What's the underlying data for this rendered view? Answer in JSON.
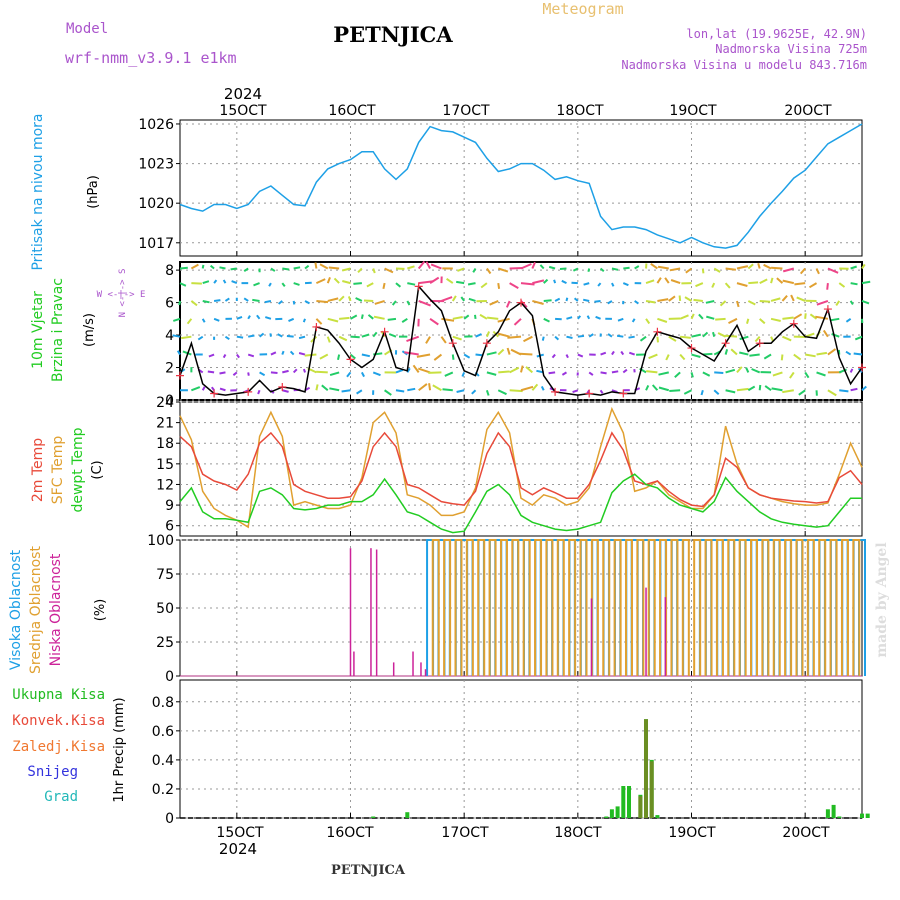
{
  "header": {
    "model_label": "Model",
    "model_value": "wrf-nmm_v3.9.1  e1km",
    "title": "PETNJICA",
    "meteogram_label": "Meteogram",
    "location": "lon,lat (19.9625E, 42.9N)",
    "elevation": "Nadmorska Visina 725m",
    "model_elevation": "Nadmorska Visina u modelu 843.716m",
    "footer_title": "PETNJICA",
    "credit": "made by Angel"
  },
  "colors": {
    "pressure": "#1ea0e6",
    "wind_label": "#22cc22",
    "t2m": "#e84a3a",
    "sfc": "#e0a030",
    "dew": "#22cc22",
    "high_cloud": "#1ea0e6",
    "mid_cloud": "#e0a030",
    "low_cloud": "#cc2299",
    "precip": "#22bb22",
    "precip_dark": "#6b8e23",
    "model": "#aa55cc",
    "header_gold": "#e8c070",
    "grid": "#999999"
  },
  "time_axis": {
    "year": "2024",
    "ticks": [
      "15OCT",
      "16OCT",
      "17OCT",
      "18OCT",
      "19OCT",
      "20OCT"
    ]
  },
  "panels": {
    "pressure": {
      "label": "Pritisak na nivou mora",
      "unit": "(hPa)"
    },
    "wind": {
      "label1": "10m Vjetar",
      "label2": "Brzina i Pravac",
      "unit": "(m/s)",
      "compass_ns": "N <-|-> S",
      "compass_we": "W  <-|->  E"
    },
    "temp": {
      "label_t2m": "2m Temp",
      "label_sfc": "SFC Temp",
      "label_dew": "dewpt Temp",
      "unit": "(C)"
    },
    "cloud": {
      "label_high": "Visoka Oblacnost",
      "label_mid": "Srednja Oblacnost",
      "label_low": "Niska Oblacnost",
      "unit": "(%)"
    },
    "precip": {
      "unit": "1hr Precip (mm)",
      "legend": [
        "Ukupna Kisa",
        "Konvek.Kisa",
        "Zaledj.Kisa",
        "Snijeg",
        "Grad"
      ]
    }
  },
  "chart_data": [
    {
      "type": "line",
      "panel": "pressure",
      "ylim": [
        1016,
        1026.3
      ],
      "yticks": [
        1017,
        1020,
        1023,
        1026
      ],
      "x_days": [
        14.5,
        14.6,
        14.7,
        14.8,
        14.9,
        15.0,
        15.1,
        15.2,
        15.3,
        15.4,
        15.5,
        15.6,
        15.7,
        15.8,
        15.9,
        16.0,
        16.1,
        16.2,
        16.3,
        16.4,
        16.5,
        16.6,
        16.7,
        16.8,
        16.9,
        17.0,
        17.1,
        17.2,
        17.3,
        17.4,
        17.5,
        17.6,
        17.7,
        17.8,
        17.9,
        18.0,
        18.1,
        18.2,
        18.3,
        18.4,
        18.5,
        18.6,
        18.7,
        18.8,
        18.9,
        19.0,
        19.1,
        19.2,
        19.3,
        19.4,
        19.5,
        19.6,
        19.7,
        19.8,
        19.9,
        20.0,
        20.1,
        20.2,
        20.3,
        20.4,
        20.5
      ],
      "values": [
        1019.9,
        1019.6,
        1019.4,
        1019.9,
        1019.9,
        1019.6,
        1019.9,
        1020.9,
        1021.3,
        1020.6,
        1019.9,
        1019.8,
        1021.6,
        1022.6,
        1023.0,
        1023.3,
        1023.9,
        1023.9,
        1022.6,
        1021.8,
        1022.6,
        1024.6,
        1025.8,
        1025.5,
        1025.4,
        1025.0,
        1024.6,
        1023.4,
        1022.4,
        1022.6,
        1023.0,
        1023.0,
        1022.5,
        1021.8,
        1022.0,
        1021.7,
        1021.5,
        1019.0,
        1018.0,
        1018.2,
        1018.2,
        1018.0,
        1017.6,
        1017.3,
        1017.0,
        1017.4,
        1017.0,
        1016.7,
        1016.6,
        1016.8,
        1017.8,
        1019.0,
        1020.0,
        1020.9,
        1021.9,
        1022.5,
        1023.5,
        1024.5,
        1025.0,
        1025.5,
        1026.0
      ]
    },
    {
      "type": "line",
      "panel": "wind",
      "ylim": [
        0,
        8.5
      ],
      "yticks": [
        0,
        2,
        4,
        6,
        8
      ],
      "x_days": [
        14.5,
        14.6,
        14.7,
        14.8,
        14.9,
        15.0,
        15.1,
        15.2,
        15.3,
        15.4,
        15.5,
        15.6,
        15.7,
        15.8,
        15.9,
        16.0,
        16.1,
        16.2,
        16.3,
        16.4,
        16.5,
        16.6,
        16.7,
        16.8,
        16.9,
        17.0,
        17.1,
        17.2,
        17.3,
        17.4,
        17.5,
        17.6,
        17.7,
        17.8,
        17.9,
        18.0,
        18.1,
        18.2,
        18.3,
        18.4,
        18.5,
        18.6,
        18.7,
        18.8,
        18.9,
        19.0,
        19.1,
        19.2,
        19.3,
        19.4,
        19.5,
        19.6,
        19.7,
        19.8,
        19.9,
        20.0,
        20.1,
        20.2,
        20.3,
        20.4,
        20.5
      ],
      "values": [
        1.5,
        3.5,
        1.0,
        0.4,
        0.3,
        0.4,
        0.5,
        1.2,
        0.5,
        0.8,
        0.7,
        0.5,
        4.5,
        4.3,
        3.5,
        2.5,
        2.0,
        2.5,
        4.2,
        2.0,
        1.8,
        7.0,
        6.2,
        5.5,
        3.5,
        1.8,
        1.5,
        3.5,
        4.2,
        5.5,
        6.0,
        5.2,
        1.5,
        0.5,
        0.4,
        0.3,
        0.4,
        0.3,
        0.5,
        0.4,
        0.4,
        3.0,
        4.2,
        4.0,
        3.8,
        3.2,
        2.8,
        2.4,
        3.5,
        4.6,
        3.0,
        3.5,
        3.5,
        4.2,
        4.7,
        3.9,
        3.8,
        5.6,
        2.6,
        1.0,
        2.0
      ]
    },
    {
      "type": "line",
      "panel": "temp",
      "ylim": [
        4.5,
        24
      ],
      "yticks": [
        6,
        9,
        12,
        15,
        18,
        21,
        24
      ],
      "x_days": [
        14.5,
        14.6,
        14.7,
        14.8,
        14.9,
        15.0,
        15.1,
        15.2,
        15.3,
        15.4,
        15.5,
        15.6,
        15.7,
        15.8,
        15.9,
        16.0,
        16.1,
        16.2,
        16.3,
        16.4,
        16.5,
        16.6,
        16.7,
        16.8,
        16.9,
        17.0,
        17.1,
        17.2,
        17.3,
        17.4,
        17.5,
        17.6,
        17.7,
        17.8,
        17.9,
        18.0,
        18.1,
        18.2,
        18.3,
        18.4,
        18.5,
        18.6,
        18.7,
        18.8,
        18.9,
        19.0,
        19.1,
        19.2,
        19.3,
        19.4,
        19.5,
        19.6,
        19.7,
        19.8,
        19.9,
        20.0,
        20.1,
        20.2,
        20.3,
        20.4,
        20.5
      ],
      "series": [
        {
          "name": "2m Temp",
          "values": [
            19.0,
            17.5,
            13.5,
            12.5,
            12.0,
            11.2,
            13.5,
            18.0,
            19.5,
            17.5,
            12.0,
            11.0,
            10.5,
            10.0,
            10.0,
            10.2,
            12.5,
            17.5,
            19.5,
            17.5,
            12.0,
            11.5,
            10.5,
            9.5,
            9.2,
            9.0,
            11.0,
            16.5,
            19.5,
            17.5,
            11.5,
            10.5,
            11.5,
            10.8,
            10.0,
            10.0,
            12.0,
            15.5,
            19.5,
            17.0,
            12.5,
            12.0,
            12.5,
            11.0,
            9.8,
            9.0,
            8.8,
            10.5,
            15.8,
            14.5,
            11.5,
            10.5,
            10.0,
            9.8,
            9.6,
            9.5,
            9.3,
            9.5,
            13.0,
            14.0,
            12.0
          ]
        },
        {
          "name": "SFC Temp",
          "values": [
            22.0,
            18.5,
            11.0,
            8.5,
            7.5,
            6.8,
            5.8,
            19.0,
            22.5,
            19.0,
            9.0,
            9.5,
            9.0,
            8.5,
            8.5,
            9.0,
            13.0,
            21.0,
            22.5,
            19.5,
            10.5,
            10.0,
            9.0,
            7.5,
            7.5,
            8.0,
            11.5,
            20.0,
            22.5,
            19.5,
            10.0,
            9.0,
            10.5,
            10.0,
            9.0,
            9.5,
            11.5,
            17.5,
            23.0,
            19.5,
            11.0,
            11.5,
            12.5,
            10.5,
            9.5,
            8.5,
            8.5,
            10.5,
            20.5,
            15.0,
            11.5,
            10.5,
            10.0,
            9.5,
            9.2,
            9.0,
            9.0,
            9.3,
            13.5,
            18.0,
            14.5
          ]
        },
        {
          "name": "dewpt Temp",
          "values": [
            9.5,
            11.5,
            8.0,
            7.0,
            7.0,
            6.8,
            6.5,
            11.0,
            11.5,
            10.5,
            8.5,
            8.3,
            8.5,
            9.0,
            9.0,
            9.5,
            9.5,
            10.5,
            12.8,
            10.5,
            8.0,
            7.5,
            6.5,
            5.5,
            5.0,
            5.2,
            8.0,
            11.0,
            12.0,
            10.5,
            7.5,
            6.5,
            6.0,
            5.5,
            5.3,
            5.5,
            6.0,
            6.5,
            10.8,
            12.5,
            13.5,
            12.0,
            11.5,
            10.0,
            9.0,
            8.5,
            8.0,
            9.5,
            13.0,
            11.0,
            9.5,
            8.0,
            7.0,
            6.5,
            6.2,
            6.0,
            5.8,
            6.0,
            8.0,
            10.0,
            10.0
          ]
        }
      ]
    },
    {
      "type": "bar",
      "panel": "cloud",
      "ylim": [
        0,
        100
      ],
      "yticks": [
        0,
        25,
        50,
        75,
        100
      ],
      "series": [
        {
          "name": "Visoka Oblacnost",
          "x_days": [
            16.7,
            16.8,
            16.9,
            17.0,
            17.1,
            17.2,
            17.3,
            17.4,
            17.5,
            17.6,
            17.7,
            17.8,
            17.9,
            18.0,
            18.1,
            18.2,
            18.3,
            18.4,
            18.5,
            18.6,
            18.7,
            18.8,
            18.9,
            19.1,
            19.2,
            19.3,
            19.4,
            19.5,
            19.6,
            19.7,
            19.8,
            19.9,
            20.0,
            20.1,
            20.2,
            20.3,
            20.4,
            20.5
          ],
          "values": [
            100,
            100,
            100,
            100,
            100,
            100,
            100,
            100,
            100,
            100,
            100,
            100,
            100,
            100,
            100,
            100,
            100,
            100,
            100,
            100,
            100,
            100,
            100,
            100,
            100,
            100,
            100,
            100,
            100,
            100,
            100,
            100,
            100,
            100,
            100,
            100,
            100,
            100
          ]
        },
        {
          "name": "Srednja Oblacnost",
          "x_days": [
            16.75,
            16.85,
            16.95,
            17.05,
            17.15,
            17.25,
            17.35,
            17.45,
            17.55,
            17.65,
            17.75,
            17.85,
            17.95,
            18.05,
            18.15,
            18.25,
            18.35,
            18.45,
            18.55,
            18.65,
            18.75,
            18.85,
            18.95,
            19.05,
            19.15,
            19.25,
            19.35,
            19.45,
            19.55,
            19.65,
            19.75,
            19.85,
            19.95,
            20.05,
            20.15,
            20.25,
            20.35,
            20.45
          ],
          "values": [
            100,
            100,
            100,
            100,
            100,
            100,
            100,
            100,
            100,
            100,
            100,
            100,
            100,
            100,
            100,
            100,
            100,
            100,
            100,
            100,
            100,
            100,
            100,
            100,
            100,
            100,
            100,
            100,
            100,
            100,
            100,
            100,
            100,
            100,
            100,
            100,
            100,
            100
          ]
        },
        {
          "name": "Niska Oblacnost",
          "x_days": [
            16.0,
            16.03,
            16.18,
            16.23,
            16.38,
            16.55,
            16.62,
            16.66,
            18.12,
            18.6,
            18.77
          ],
          "values": [
            94,
            18,
            94,
            93,
            10,
            18,
            10,
            5,
            57,
            65,
            58
          ]
        }
      ]
    },
    {
      "type": "bar",
      "panel": "precip",
      "ylim": [
        0,
        0.95
      ],
      "yticks": [
        0,
        0.2,
        0.4,
        0.6,
        0.8
      ],
      "series": [
        {
          "name": "Ukupna Kisa",
          "x_days": [
            16.2,
            16.5,
            18.25,
            18.3,
            18.35,
            18.4,
            18.45,
            18.55,
            18.6,
            18.65,
            18.7,
            20.2,
            20.25,
            20.3,
            20.5,
            20.55
          ],
          "values": [
            0.01,
            0.04,
            0.01,
            0.06,
            0.08,
            0.22,
            0.22,
            0.16,
            0.68,
            0.4,
            0.02,
            0.06,
            0.09,
            0.01,
            0.03,
            0.03
          ]
        },
        {
          "name": "Konvek.Kisa",
          "x_days": [
            18.55,
            18.6,
            18.65
          ],
          "values": [
            0.15,
            0.68,
            0.39
          ]
        }
      ]
    }
  ]
}
